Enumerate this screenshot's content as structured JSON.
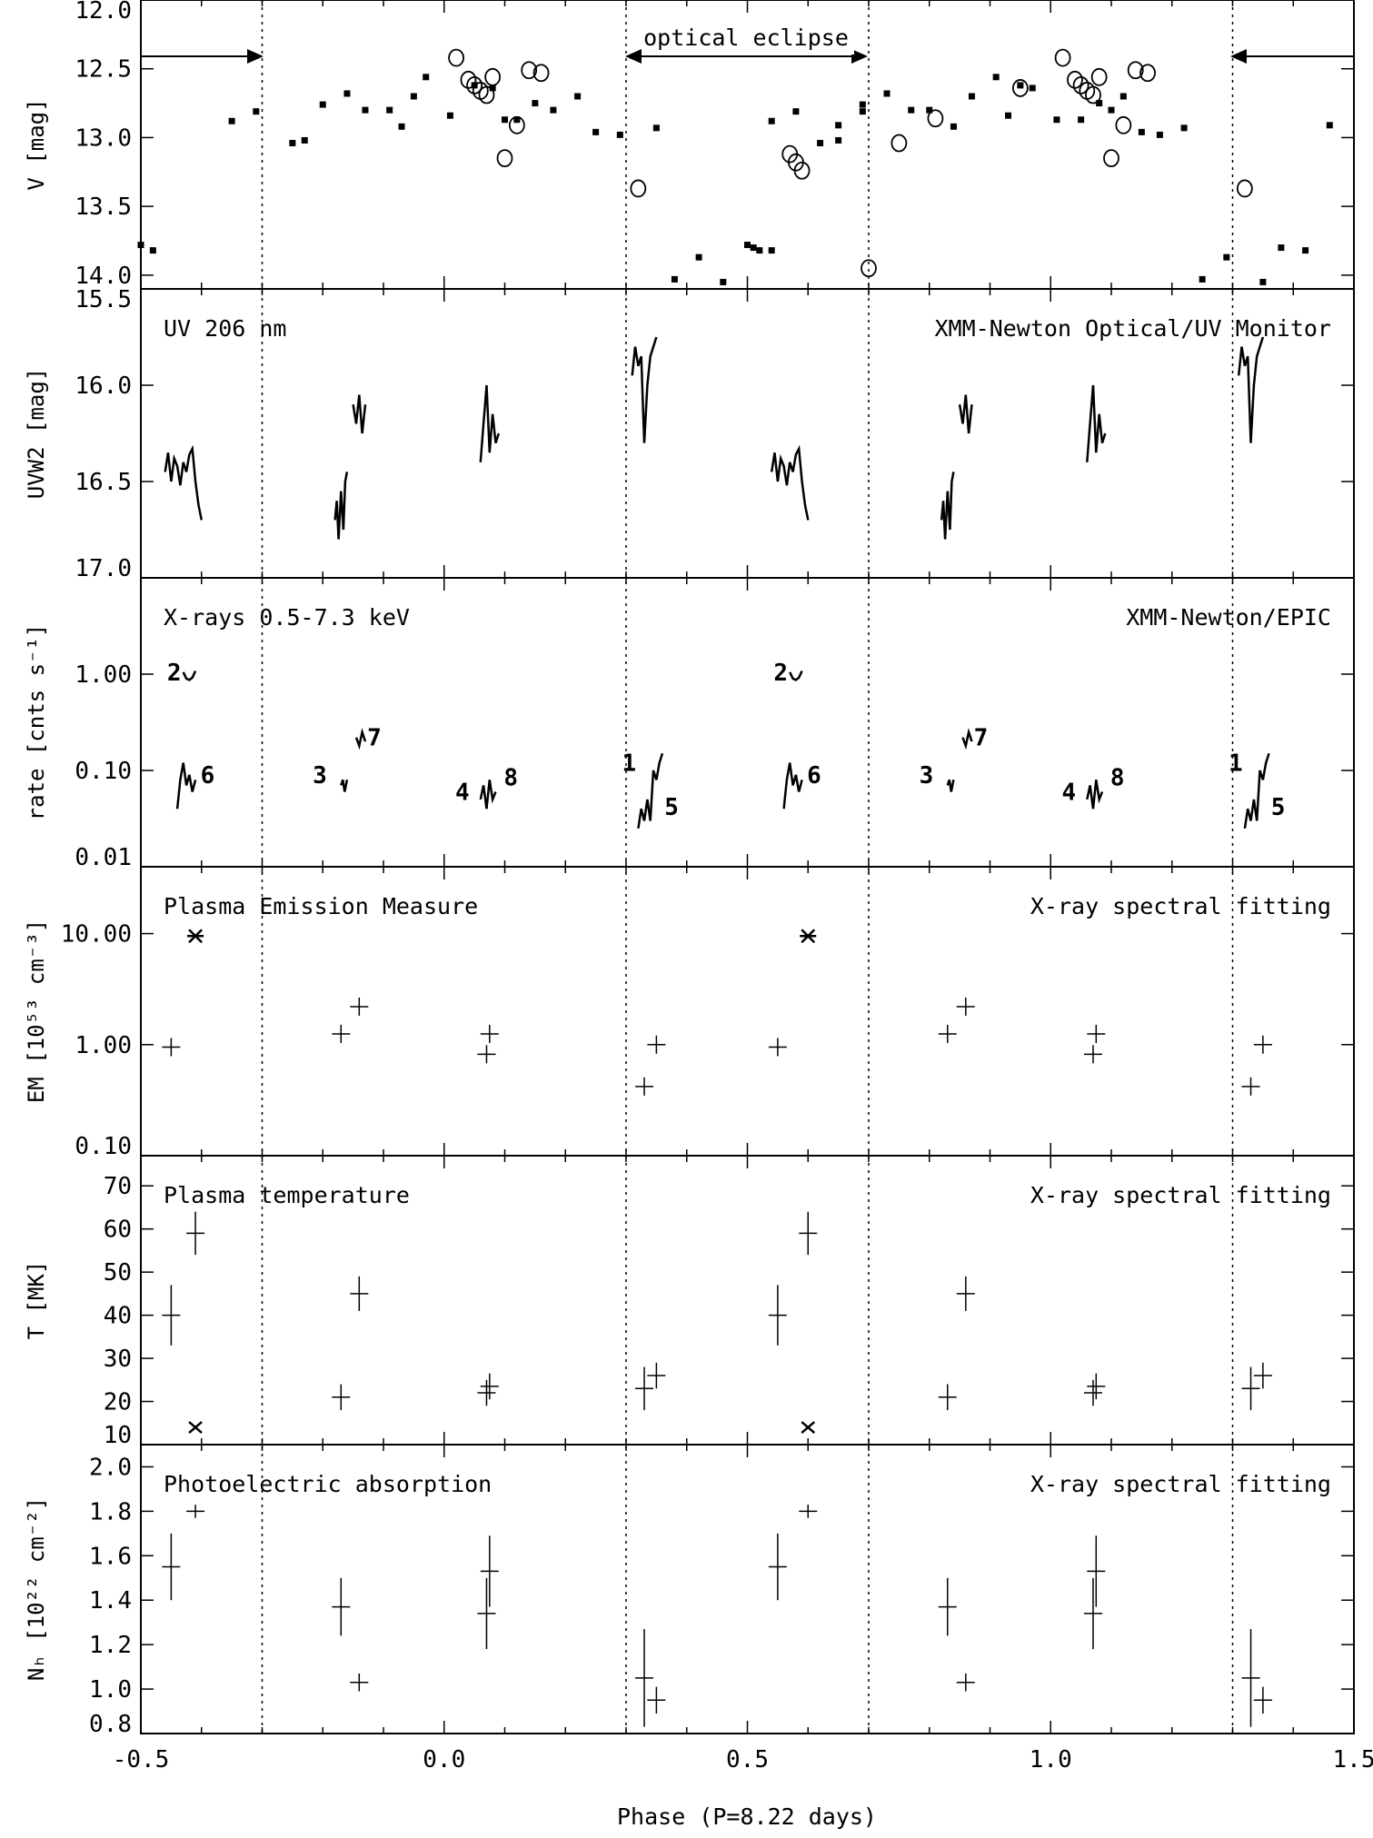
{
  "figure": {
    "xlabel": "Phase (P=8.22 days)",
    "x_ticks": [
      "-0.5",
      "0.0",
      "0.5",
      "1.0",
      "1.5"
    ],
    "x_tick_values": [
      -0.5,
      0.0,
      0.5,
      1.0,
      1.5
    ],
    "xlim": [
      -0.5,
      1.5
    ],
    "dotted_phase_lines": [
      -0.3,
      0.3,
      0.7,
      1.3
    ],
    "eclipse_label": "optical eclipse"
  },
  "chart_data": [
    {
      "type": "scatter",
      "ylabel": "V [mag]",
      "ylim": [
        12.0,
        14.1
      ],
      "y_inverted": true,
      "y_ticks": [
        "12.0",
        "12.5",
        "13.0",
        "13.5",
        "14.0"
      ],
      "y_tick_values": [
        12.0,
        12.5,
        13.0,
        13.5,
        14.0
      ],
      "annotations": [
        "optical eclipse"
      ],
      "series": [
        {
          "marker": "filled",
          "x": [
            -0.5,
            -0.48,
            -0.35,
            -0.31,
            -0.25,
            -0.23,
            -0.2,
            -0.16,
            -0.13,
            -0.09,
            -0.07,
            -0.05,
            -0.03,
            0.01,
            0.05,
            0.08,
            0.1,
            0.12,
            0.15,
            0.18,
            0.22,
            0.25,
            0.29,
            0.35,
            0.38,
            0.42,
            0.46,
            0.51,
            0.54,
            0.65,
            0.69,
            0.5,
            0.52,
            0.54,
            0.58,
            0.62,
            0.65,
            0.69,
            0.73,
            0.77,
            0.8,
            0.84,
            0.87,
            0.91,
            0.93,
            0.95,
            0.97,
            1.01,
            1.05,
            1.08,
            1.1,
            1.12,
            1.15,
            1.18,
            1.22,
            1.25,
            1.29,
            1.35,
            1.38,
            1.42,
            1.46
          ],
          "y": [
            13.78,
            13.82,
            12.88,
            12.81,
            13.04,
            13.02,
            12.76,
            12.68,
            12.8,
            12.8,
            12.92,
            12.7,
            12.56,
            12.84,
            12.62,
            12.64,
            12.87,
            12.87,
            12.75,
            12.8,
            12.7,
            12.96,
            12.98,
            12.93,
            14.03,
            13.87,
            14.05,
            13.8,
            13.82,
            12.91,
            12.81,
            13.78,
            13.82,
            12.88,
            12.81,
            13.04,
            13.02,
            12.76,
            12.68,
            12.8,
            12.8,
            12.92,
            12.7,
            12.56,
            12.84,
            12.62,
            12.64,
            12.87,
            12.87,
            12.75,
            12.8,
            12.7,
            12.96,
            12.98,
            12.93,
            14.03,
            13.87,
            14.05,
            13.8,
            13.82,
            12.91
          ]
        },
        {
          "marker": "open",
          "x": [
            0.02,
            0.04,
            0.05,
            0.06,
            0.07,
            0.08,
            0.1,
            0.12,
            0.14,
            0.16,
            0.32,
            0.57,
            0.58,
            0.59,
            0.7,
            0.75,
            0.81,
            0.95,
            1.02,
            1.04,
            1.05,
            1.06,
            1.07,
            1.08,
            1.1,
            1.12,
            1.14,
            1.16,
            1.32
          ],
          "y": [
            12.42,
            12.58,
            12.62,
            12.66,
            12.69,
            12.56,
            13.15,
            12.91,
            12.51,
            12.53,
            13.37,
            13.12,
            13.18,
            13.24,
            13.95,
            13.04,
            12.86,
            12.64,
            12.42,
            12.58,
            12.62,
            12.66,
            12.69,
            12.56,
            13.15,
            12.91,
            12.51,
            12.53,
            13.37
          ]
        }
      ]
    },
    {
      "type": "line",
      "ylabel": "UVW2 [mag]",
      "ylim": [
        15.5,
        17.0
      ],
      "y_inverted": true,
      "y_ticks": [
        "15.5",
        "16.0",
        "16.5",
        "17.0"
      ],
      "y_tick_values": [
        15.5,
        16.0,
        16.5,
        17.0
      ],
      "annotations": [
        "UV 206 nm",
        "XMM-Newton Optical/UV Monitor"
      ],
      "series": [
        {
          "x": [
            -0.46,
            -0.455,
            -0.45,
            -0.445,
            -0.44,
            -0.435,
            -0.43,
            -0.425,
            -0.42,
            -0.415,
            -0.41,
            -0.405,
            -0.4
          ],
          "y": [
            16.45,
            16.35,
            16.5,
            16.38,
            16.42,
            16.52,
            16.4,
            16.45,
            16.36,
            16.33,
            16.5,
            16.62,
            16.7
          ]
        },
        {
          "x": [
            -0.18,
            -0.177,
            -0.174,
            -0.17,
            -0.166,
            -0.163,
            -0.16
          ],
          "y": [
            16.7,
            16.6,
            16.8,
            16.55,
            16.75,
            16.5,
            16.45
          ]
        },
        {
          "x": [
            -0.15,
            -0.145,
            -0.14,
            -0.135,
            -0.13
          ],
          "y": [
            16.1,
            16.2,
            16.05,
            16.25,
            16.1
          ]
        },
        {
          "x": [
            0.06,
            0.065,
            0.07,
            0.075,
            0.08,
            0.085,
            0.09
          ],
          "y": [
            16.4,
            16.2,
            16.0,
            16.35,
            16.15,
            16.3,
            16.25
          ]
        },
        {
          "x": [
            0.31,
            0.315,
            0.32,
            0.325,
            0.33,
            0.335,
            0.34,
            0.345,
            0.35
          ],
          "y": [
            15.95,
            15.8,
            15.9,
            15.85,
            16.3,
            16.0,
            15.85,
            15.8,
            15.75
          ]
        },
        {
          "x": [
            0.54,
            0.545,
            0.55,
            0.555,
            0.56,
            0.565,
            0.57,
            0.575,
            0.58,
            0.585,
            0.59,
            0.595,
            0.6
          ],
          "y": [
            16.45,
            16.35,
            16.5,
            16.38,
            16.42,
            16.52,
            16.4,
            16.45,
            16.36,
            16.33,
            16.5,
            16.62,
            16.7
          ]
        },
        {
          "x": [
            0.82,
            0.823,
            0.826,
            0.83,
            0.834,
            0.837,
            0.84
          ],
          "y": [
            16.7,
            16.6,
            16.8,
            16.55,
            16.75,
            16.5,
            16.45
          ]
        },
        {
          "x": [
            0.85,
            0.855,
            0.86,
            0.865,
            0.87
          ],
          "y": [
            16.1,
            16.2,
            16.05,
            16.25,
            16.1
          ]
        },
        {
          "x": [
            1.06,
            1.065,
            1.07,
            1.075,
            1.08,
            1.085,
            1.09
          ],
          "y": [
            16.4,
            16.2,
            16.0,
            16.35,
            16.15,
            16.3,
            16.25
          ]
        },
        {
          "x": [
            1.31,
            1.315,
            1.32,
            1.325,
            1.33,
            1.335,
            1.34,
            1.345,
            1.35
          ],
          "y": [
            15.95,
            15.8,
            15.9,
            15.85,
            16.3,
            16.0,
            15.85,
            15.8,
            15.75
          ]
        }
      ]
    },
    {
      "type": "line",
      "ylabel": "rate [cnts s⁻¹]",
      "y_scale": "log",
      "ylim": [
        0.01,
        10.0
      ],
      "y_ticks": [
        "0.01",
        "0.10",
        "1.00"
      ],
      "y_tick_values": [
        0.01,
        0.1,
        1.0
      ],
      "annotations": [
        "X-rays 0.5-7.3 keV",
        "XMM-Newton/EPIC"
      ],
      "segment_labels": [
        {
          "text": "2",
          "x": -0.445,
          "y": 1.05
        },
        {
          "text": "6",
          "x": -0.39,
          "y": 0.09
        },
        {
          "text": "3",
          "x": -0.205,
          "y": 0.09
        },
        {
          "text": "7",
          "x": -0.115,
          "y": 0.22
        },
        {
          "text": "4",
          "x": 0.03,
          "y": 0.06
        },
        {
          "text": "8",
          "x": 0.11,
          "y": 0.085
        },
        {
          "text": "1",
          "x": 0.305,
          "y": 0.12
        },
        {
          "text": "5",
          "x": 0.375,
          "y": 0.042
        },
        {
          "text": "2",
          "x": 0.555,
          "y": 1.05
        },
        {
          "text": "6",
          "x": 0.61,
          "y": 0.09
        },
        {
          "text": "3",
          "x": 0.795,
          "y": 0.09
        },
        {
          "text": "7",
          "x": 0.885,
          "y": 0.22
        },
        {
          "text": "4",
          "x": 1.03,
          "y": 0.06
        },
        {
          "text": "8",
          "x": 1.11,
          "y": 0.085
        },
        {
          "text": "1",
          "x": 1.305,
          "y": 0.12
        },
        {
          "text": "5",
          "x": 1.375,
          "y": 0.042
        }
      ],
      "series": [
        {
          "x": [
            -0.43,
            -0.425,
            -0.42,
            -0.415,
            -0.41
          ],
          "y": [
            1.05,
            0.9,
            0.87,
            0.92,
            1.08
          ]
        },
        {
          "x": [
            -0.44,
            -0.435,
            -0.43,
            -0.425,
            -0.42,
            -0.415,
            -0.41
          ],
          "y": [
            0.04,
            0.08,
            0.12,
            0.07,
            0.09,
            0.06,
            0.08
          ]
        },
        {
          "x": [
            -0.17,
            -0.167,
            -0.164,
            -0.16
          ],
          "y": [
            0.07,
            0.08,
            0.06,
            0.08
          ]
        },
        {
          "x": [
            -0.145,
            -0.14,
            -0.135,
            -0.13
          ],
          "y": [
            0.22,
            0.18,
            0.25,
            0.2
          ]
        },
        {
          "x": [
            0.06,
            0.065,
            0.07,
            0.075,
            0.08,
            0.085
          ],
          "y": [
            0.05,
            0.07,
            0.04,
            0.08,
            0.05,
            0.06
          ]
        },
        {
          "x": [
            0.32,
            0.325,
            0.33,
            0.335,
            0.34,
            0.345,
            0.35,
            0.355,
            0.36
          ],
          "y": [
            0.025,
            0.04,
            0.03,
            0.05,
            0.03,
            0.1,
            0.08,
            0.12,
            0.15
          ]
        },
        {
          "x": [
            0.57,
            0.575,
            0.58,
            0.585,
            0.59
          ],
          "y": [
            1.05,
            0.9,
            0.87,
            0.92,
            1.08
          ]
        },
        {
          "x": [
            0.56,
            0.565,
            0.57,
            0.575,
            0.58,
            0.585,
            0.59
          ],
          "y": [
            0.04,
            0.08,
            0.12,
            0.07,
            0.09,
            0.06,
            0.08
          ]
        },
        {
          "x": [
            0.83,
            0.833,
            0.836,
            0.84
          ],
          "y": [
            0.07,
            0.08,
            0.06,
            0.08
          ]
        },
        {
          "x": [
            0.855,
            0.86,
            0.865,
            0.87
          ],
          "y": [
            0.22,
            0.18,
            0.25,
            0.2
          ]
        },
        {
          "x": [
            1.06,
            1.065,
            1.07,
            1.075,
            1.08,
            1.085
          ],
          "y": [
            0.05,
            0.07,
            0.04,
            0.08,
            0.05,
            0.06
          ]
        },
        {
          "x": [
            1.32,
            1.325,
            1.33,
            1.335,
            1.34,
            1.345,
            1.35,
            1.355,
            1.36
          ],
          "y": [
            0.025,
            0.04,
            0.03,
            0.05,
            0.03,
            0.1,
            0.08,
            0.12,
            0.15
          ]
        }
      ]
    },
    {
      "type": "scatter",
      "ylabel": "EM [10⁵³ cm⁻³]",
      "y_scale": "log",
      "ylim": [
        0.1,
        40.0
      ],
      "y_ticks": [
        "0.10",
        "1.00",
        "10.00"
      ],
      "y_tick_values": [
        0.1,
        1.0,
        10.0
      ],
      "annotations": [
        "Plasma Emission Measure",
        "X-ray spectral fitting"
      ],
      "series": [
        {
          "marker": "cross",
          "x": [
            -0.45,
            -0.17,
            -0.14,
            0.07,
            0.075,
            0.33,
            0.35,
            0.55,
            0.83,
            0.86,
            1.07,
            1.075,
            1.33,
            1.35
          ],
          "y": [
            0.95,
            1.25,
            2.2,
            0.82,
            1.25,
            0.42,
            1.0,
            0.95,
            1.25,
            2.2,
            0.82,
            1.25,
            0.42,
            1.0
          ]
        },
        {
          "marker": "star",
          "x": [
            -0.41,
            0.6
          ],
          "y": [
            9.5,
            9.5
          ]
        }
      ]
    },
    {
      "type": "scatter",
      "ylabel": "T [MK]",
      "ylim": [
        10,
        77
      ],
      "y_ticks": [
        "10",
        "20",
        "30",
        "40",
        "50",
        "60",
        "70"
      ],
      "y_tick_values": [
        10,
        20,
        30,
        40,
        50,
        60,
        70
      ],
      "annotations": [
        "Plasma temperature",
        "X-ray spectral fitting"
      ],
      "series": [
        {
          "marker": "cross",
          "x": [
            -0.45,
            -0.41,
            -0.17,
            -0.14,
            0.07,
            0.075,
            0.33,
            0.35,
            0.55,
            0.6,
            0.83,
            0.86,
            1.07,
            1.075,
            1.33,
            1.35
          ],
          "y": [
            40,
            59,
            21,
            45,
            22,
            23.5,
            23,
            26,
            40,
            59,
            21,
            45,
            22,
            23.5,
            23,
            26
          ],
          "yerr": [
            7,
            5,
            3,
            4,
            3,
            3,
            5,
            3,
            7,
            5,
            3,
            4,
            3,
            3,
            5,
            3
          ]
        },
        {
          "marker": "x",
          "x": [
            -0.41,
            0.6
          ],
          "y": [
            14,
            14
          ]
        }
      ]
    },
    {
      "type": "scatter",
      "ylabel": "Nₕ [10²² cm⁻²]",
      "ylim": [
        0.8,
        2.1
      ],
      "y_ticks": [
        "0.8",
        "1.0",
        "1.2",
        "1.4",
        "1.6",
        "1.8",
        "2.0"
      ],
      "y_tick_values": [
        0.8,
        1.0,
        1.2,
        1.4,
        1.6,
        1.8,
        2.0
      ],
      "annotations": [
        "Photoelectric absorption",
        "X-ray spectral fitting"
      ],
      "series": [
        {
          "marker": "cross",
          "x": [
            -0.45,
            -0.41,
            -0.17,
            -0.14,
            0.07,
            0.075,
            0.33,
            0.35,
            0.55,
            0.6,
            0.83,
            0.86,
            1.07,
            1.075,
            1.33,
            1.35
          ],
          "y": [
            1.55,
            1.8,
            1.37,
            1.03,
            1.34,
            1.53,
            1.05,
            0.95,
            1.55,
            1.8,
            1.37,
            1.03,
            1.34,
            1.53,
            1.05,
            0.95
          ],
          "yerr": [
            0.15,
            0.03,
            0.13,
            0.04,
            0.16,
            0.16,
            0.22,
            0.06,
            0.15,
            0.03,
            0.13,
            0.04,
            0.16,
            0.16,
            0.22,
            0.06
          ]
        }
      ]
    }
  ]
}
